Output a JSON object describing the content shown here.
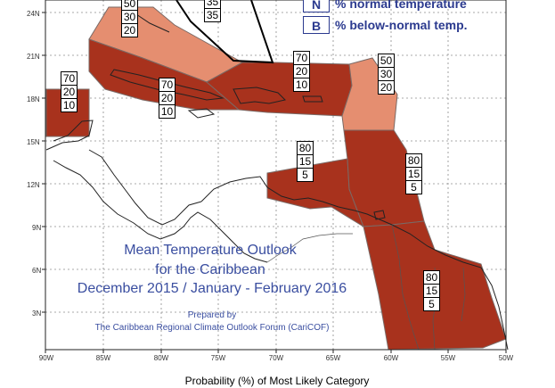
{
  "colors": {
    "above_dark": "#a8321d",
    "above_light": "#e58e70",
    "land": "#ffffff",
    "coast": "#222222",
    "grid": "#8c8c8c",
    "legend_text": "#2b3a8f",
    "title_text": "#3a4ea0"
  },
  "latitude_ticks": [
    "24N",
    "21N",
    "18N",
    "15N",
    "12N",
    "9N",
    "6N",
    "3N"
  ],
  "longitude_ticks": [
    "90W",
    "85W",
    "80W",
    "75W",
    "70W",
    "65W",
    "60W",
    "55W",
    "50W"
  ],
  "legend": [
    {
      "key": "N",
      "label": "% normal temperature"
    },
    {
      "key": "B",
      "label": "% below-normal temp."
    }
  ],
  "probability_boxes": [
    {
      "region": "belize",
      "values": [
        "70",
        "20",
        "10"
      ]
    },
    {
      "region": "bahamas-north",
      "values": [
        "50",
        "30",
        "20"
      ]
    },
    {
      "region": "turks-caicos",
      "values": [
        "35",
        "35"
      ]
    },
    {
      "region": "western-caribbean",
      "values": [
        "70",
        "20",
        "10"
      ]
    },
    {
      "region": "hispaniola-pr",
      "values": [
        "70",
        "20",
        "10"
      ]
    },
    {
      "region": "leeward-islands",
      "values": [
        "50",
        "30",
        "20"
      ]
    },
    {
      "region": "southern-caribbean",
      "values": [
        "80",
        "15",
        "5"
      ]
    },
    {
      "region": "windward-islands",
      "values": [
        "80",
        "15",
        "5"
      ]
    },
    {
      "region": "guianas",
      "values": [
        "80",
        "15",
        "5"
      ]
    }
  ],
  "title": {
    "line1": "Mean Temperature Outlook",
    "line2": "for the Caribbean",
    "line3": "December 2015 / January - February 2016"
  },
  "credit": {
    "line1": "Prepared by",
    "line2": "The Caribbean Regional Climate Outlook Forum (CariCOF)"
  },
  "bottom_label": "Probability (%) of Most Likely Category"
}
